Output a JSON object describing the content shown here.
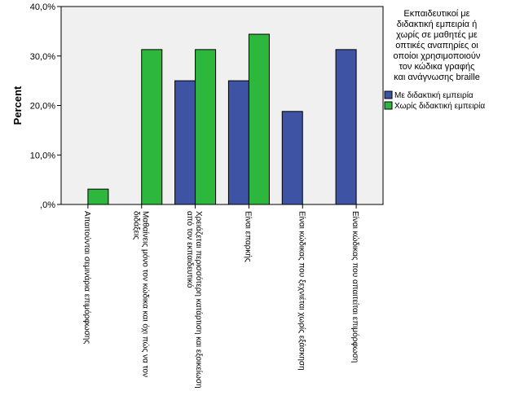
{
  "chart_data": {
    "type": "bar",
    "ylabel": "Percent",
    "ylim": [
      0,
      40
    ],
    "y_ticks": [
      "40,0%",
      "30,0%",
      "20,0%",
      "10,0%",
      ",0%"
    ],
    "y_tick_values": [
      40,
      30,
      20,
      10,
      0
    ],
    "grid": false,
    "legend_position": "top-right",
    "legend_title": "Εκπαιδευτικοί με διδακτική εμπειρία ή χωρίς σε μαθητές με οπτικές αναπηρίες οι οποίοι χρησιμοποιούν τον κώδικα γραφής και ανάγνωσης braille",
    "legend_title_lines": [
      "Εκπαιδευτικοί με",
      "διδακτική εμπειρία ή",
      "χωρίς σε μαθητές με",
      "οπτικές αναπηρίες οι",
      "οποίοι χρησιμοποιούν",
      "τον κώδικα γραφής",
      "και ανάγνωσης braille"
    ],
    "categories": [
      "Απαιτούνται σεμινάρια επιμόρφωσης",
      "Μαθαίνεις μόνο τον κώδικα και όχι πώς να τον διδάξεις",
      "Χρειάζεται περισσότερη κατάρτιση και εξοικείωση από τον εκπαιδευτικό",
      "Είναι επαρκής",
      "Είναι κώδικας που ξεχνιέται χωρίς εξάσκηση",
      "Είναι κώδικας που απαιτείται επιμόρφωση"
    ],
    "category_label_lines": [
      [
        "Απαιτούνται σεμινάρια επιμόρφωσης"
      ],
      [
        "Μαθαίνεις μόνο τον κώδικα και όχι πώς να τον",
        "διδάξεις"
      ],
      [
        "Χρειάζεται περισσότερη κατάρτιση και εξοικείωση",
        "από τον εκπαιδευτικό"
      ],
      [
        "Είναι επαρκής"
      ],
      [
        "Είναι κώδικας που ξεχνιέται χωρίς εξάσκηση"
      ],
      [
        "Είναι κώδικας που απαιτείται επιμόρφωση"
      ]
    ],
    "series": [
      {
        "name": "Με διδακτική εμπειρία",
        "color": "#3e53a4",
        "values": [
          null,
          null,
          25,
          25,
          18.8,
          31.3
        ]
      },
      {
        "name": "Χωρίς διδακτική εμπειρία",
        "color": "#2db83d",
        "values": [
          3.1,
          31.3,
          31.3,
          34.4,
          null,
          null
        ]
      }
    ],
    "plot_background": "#f0f0f0"
  }
}
